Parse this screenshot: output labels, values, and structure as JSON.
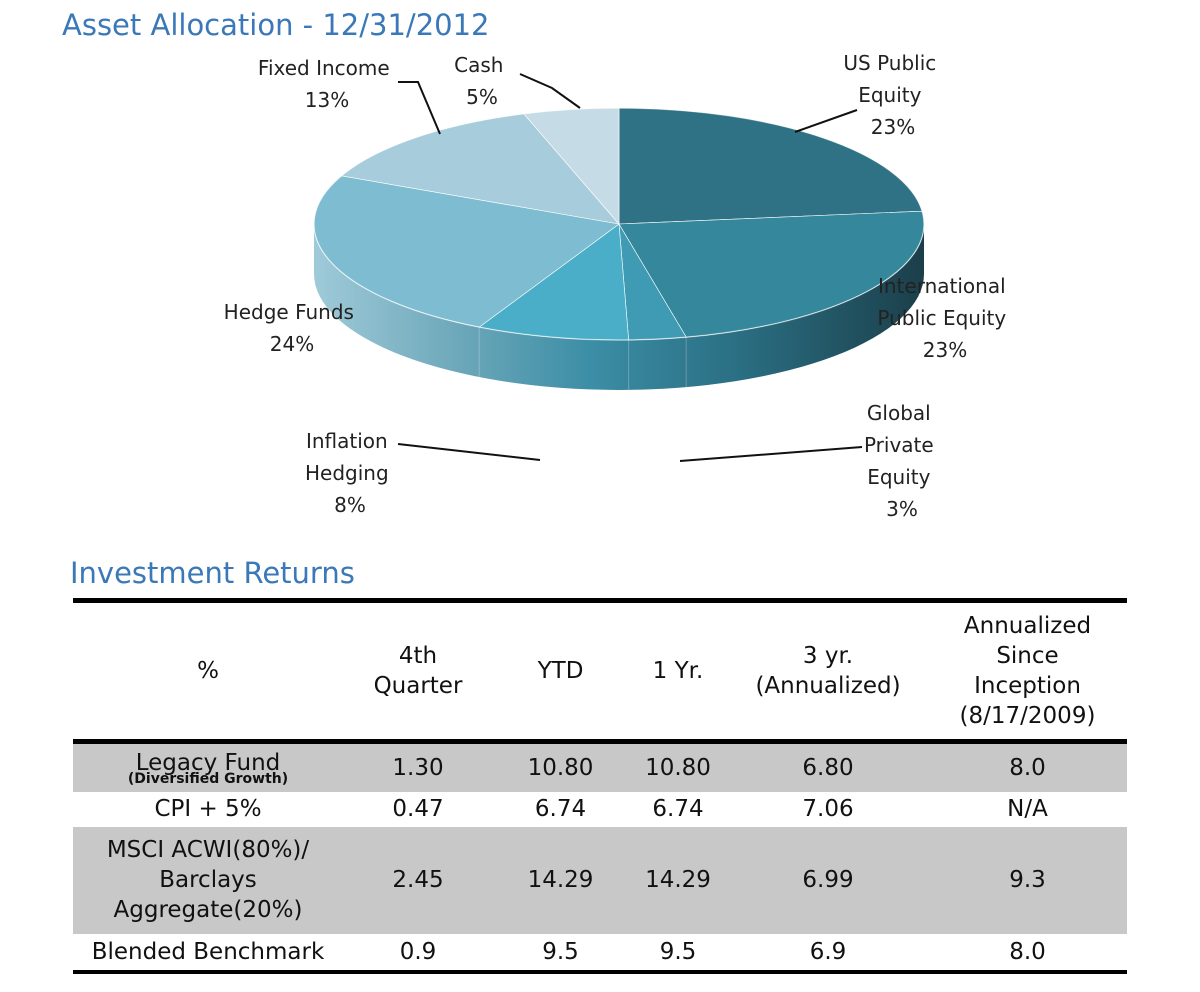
{
  "pie_title": "Asset Allocation - 12/31/2012",
  "returns_title": "Investment Returns",
  "colors": {
    "title": "#3a78b8",
    "row_shade": "#c8c8c8"
  },
  "chart_data": {
    "type": "pie",
    "title": "Asset Allocation - 12/31/2012",
    "style": "3d",
    "slices": [
      {
        "label": "US Public Equity",
        "value": 23,
        "display": "23%",
        "color": "#2f7285"
      },
      {
        "label": "International Public Equity",
        "value": 23,
        "display": "23%",
        "color": "#35879c"
      },
      {
        "label": "Global Private Equity",
        "value": 3,
        "display": "3%",
        "color": "#3f9bb4"
      },
      {
        "label": "Inflation Hedging",
        "value": 8,
        "display": "8%",
        "color": "#4aaec8"
      },
      {
        "label": "Hedge Funds",
        "value": 24,
        "display": "24%",
        "color": "#7dbcd1"
      },
      {
        "label": "Fixed Income",
        "value": 13,
        "display": "13%",
        "color": "#a7ccdb"
      },
      {
        "label": "Cash",
        "value": 5,
        "display": "5%",
        "color": "#c5dbe5"
      }
    ]
  },
  "labels": {
    "us_public": [
      "US Public",
      "Equity",
      "23%"
    ],
    "intl": [
      "International",
      "Public Equity",
      "23%"
    ],
    "global_private": [
      "Global",
      "Private",
      "Equity",
      "3%"
    ],
    "inflation": [
      "Inflation",
      "Hedging",
      "8%"
    ],
    "hedge": [
      "Hedge Funds",
      "24%"
    ],
    "fixed": [
      "Fixed Income",
      "13%"
    ],
    "cash": [
      "Cash",
      "5%"
    ]
  },
  "table": {
    "headers": {
      "pct": "%",
      "q4": [
        "4th",
        "Quarter"
      ],
      "ytd": "YTD",
      "one_yr": "1 Yr.",
      "three_yr": [
        "3 yr.",
        "(Annualized)"
      ],
      "since": [
        "Annualized",
        "Since",
        "Inception",
        "(8/17/2009)"
      ]
    },
    "rows": [
      {
        "name": "Legacy Fund",
        "sub": "(Diversified Growth)",
        "q4": "1.30",
        "ytd": "10.80",
        "one_yr": "10.80",
        "three_yr": "6.80",
        "since": "8.0"
      },
      {
        "name": "CPI + 5%",
        "q4": "0.47",
        "ytd": "6.74",
        "one_yr": "6.74",
        "three_yr": "7.06",
        "since": "N/A"
      },
      {
        "name_lines": [
          "MSCI ACWI(80%)/",
          "Barclays",
          "Aggregate(20%)"
        ],
        "q4": "2.45",
        "ytd": "14.29",
        "one_yr": "14.29",
        "three_yr": "6.99",
        "since": "9.3"
      },
      {
        "name": "Blended Benchmark",
        "q4": "0.9",
        "ytd": "9.5",
        "one_yr": "9.5",
        "three_yr": "6.9",
        "since": "8.0"
      }
    ]
  }
}
